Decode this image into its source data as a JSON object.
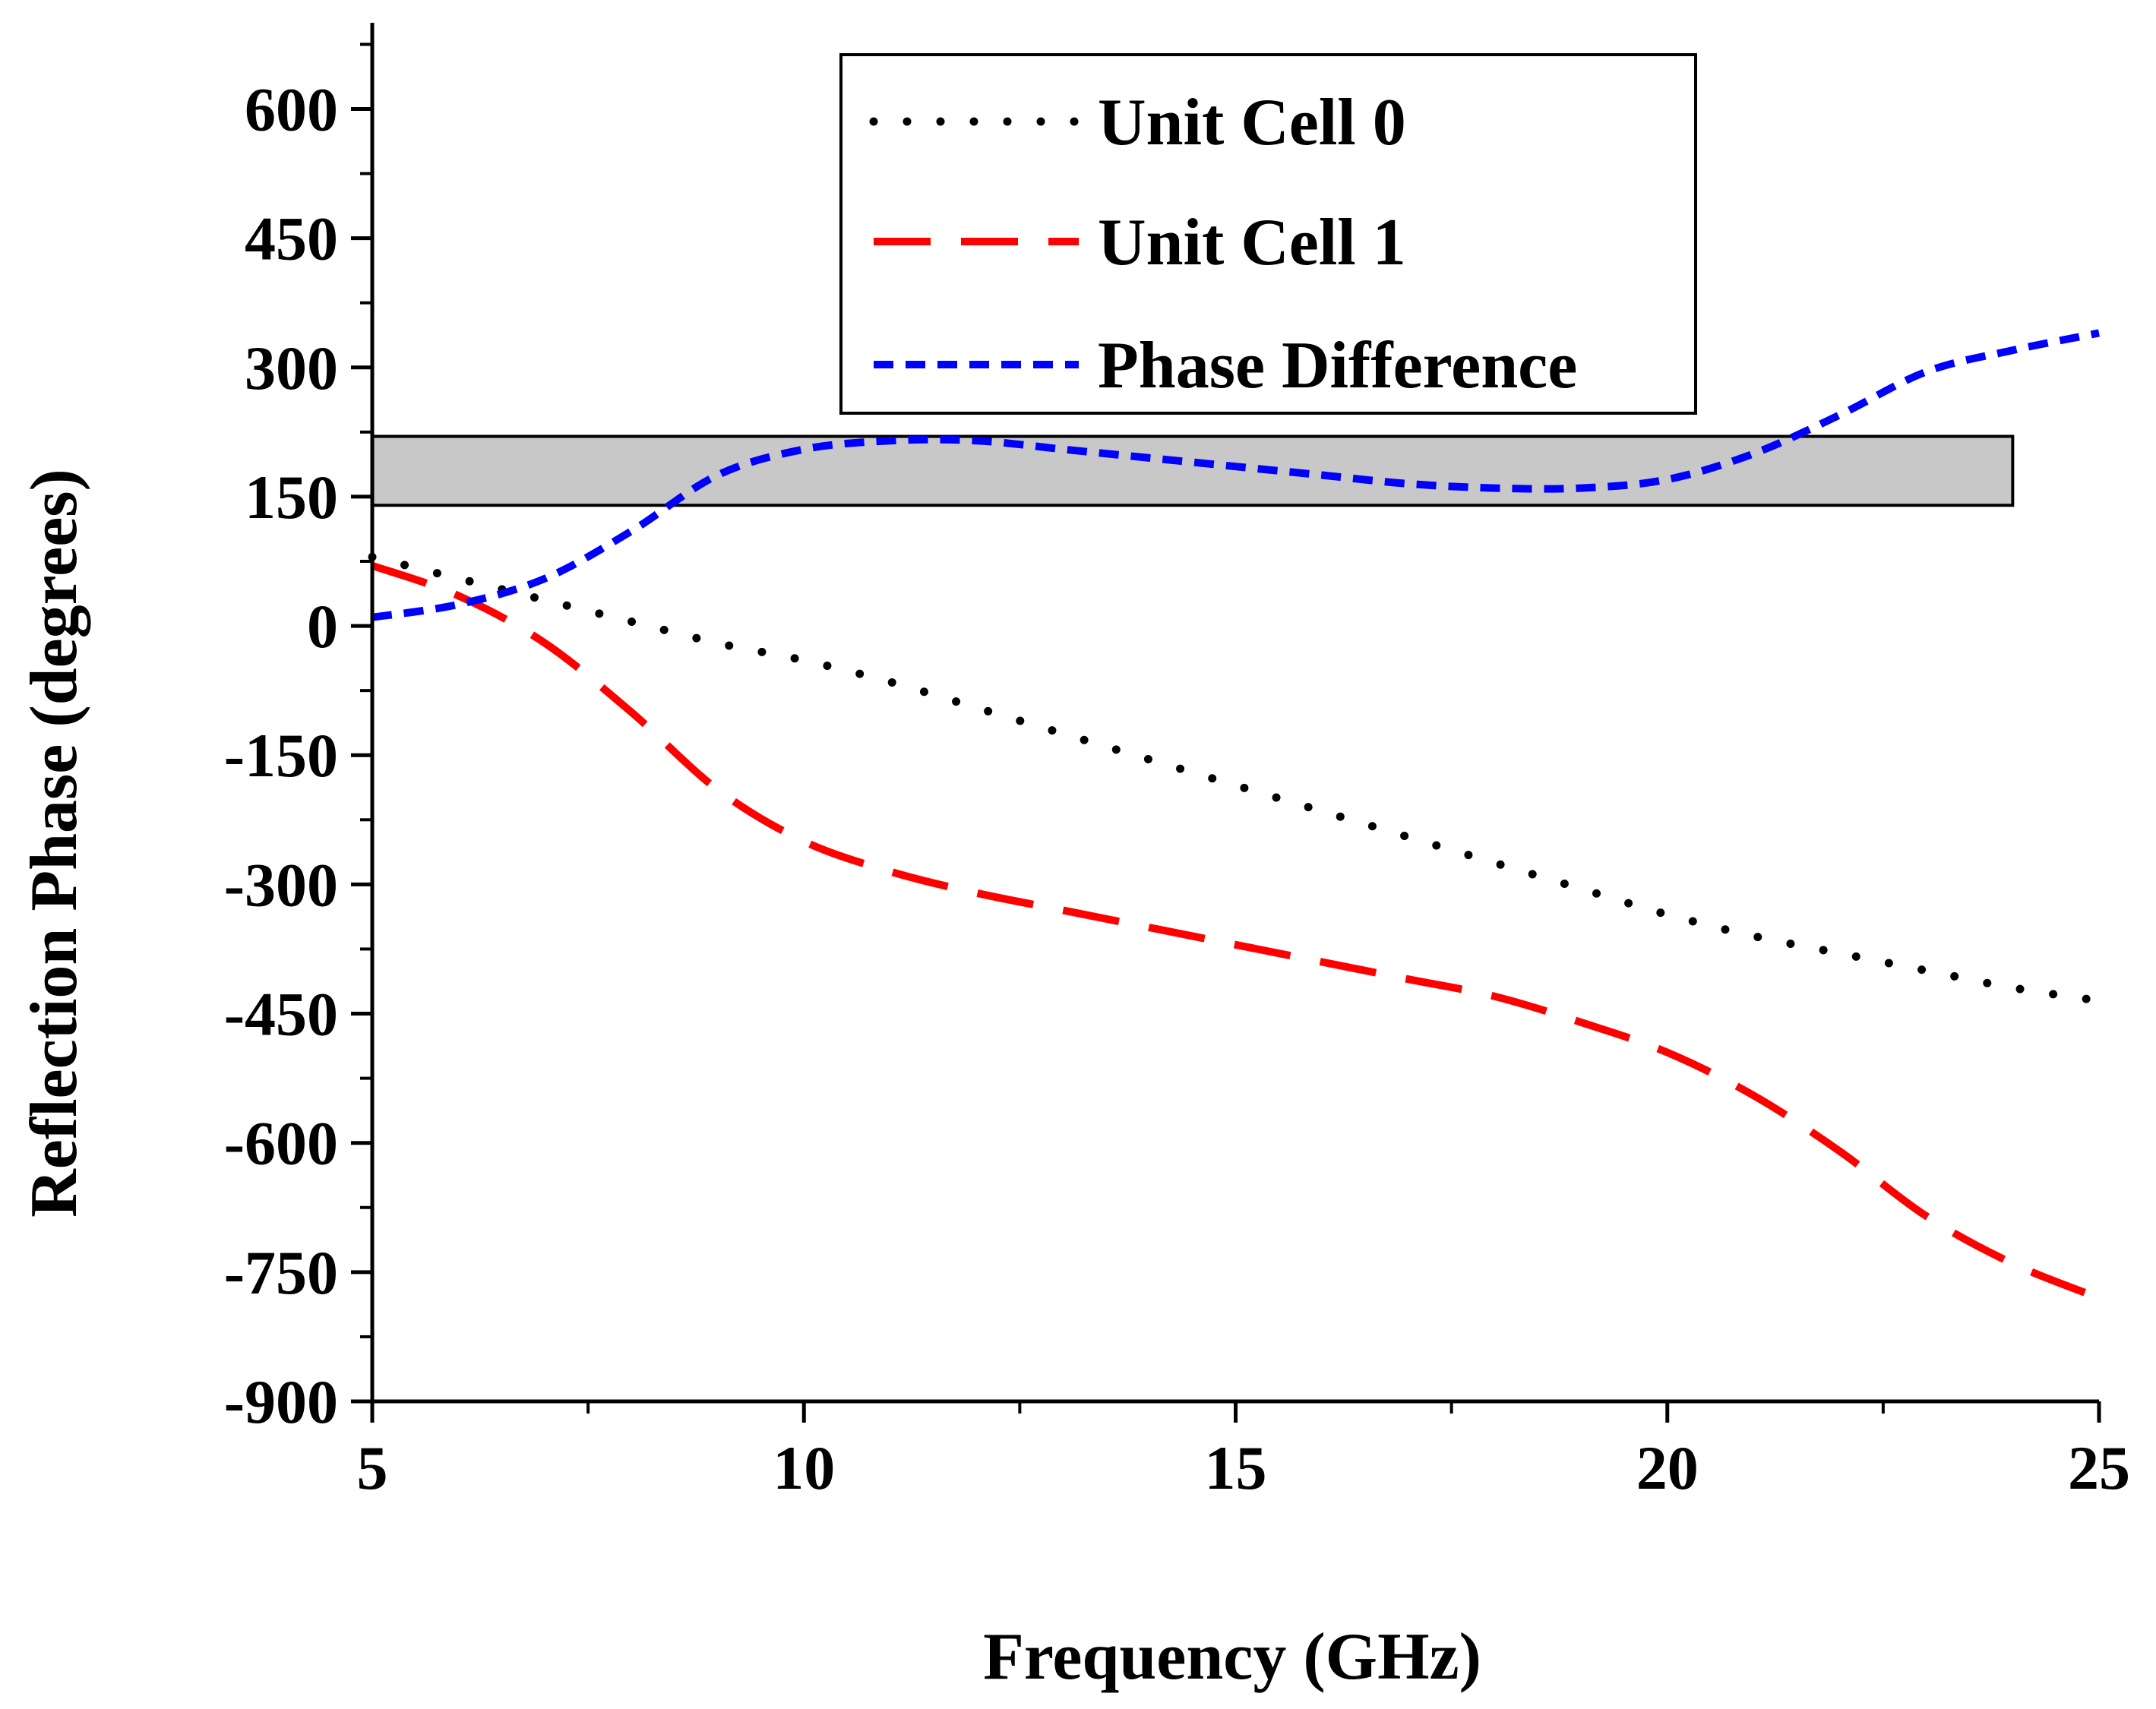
{
  "chart_data": {
    "type": "line",
    "title": "",
    "xlabel": "Frequency (GHz)",
    "ylabel": "Reflection Phase (degrees)",
    "xlim": [
      5,
      25
    ],
    "ylim": [
      -900,
      700
    ],
    "x_ticks": [
      5,
      10,
      15,
      20,
      25
    ],
    "y_ticks": [
      600,
      450,
      300,
      150,
      0,
      -150,
      -300,
      -450,
      -600,
      -750,
      -900
    ],
    "x_tick_labels": [
      "5",
      "10",
      "15",
      "20",
      "25"
    ],
    "y_tick_labels": [
      "600",
      "450",
      "300",
      "150",
      "0",
      "-150",
      "-300",
      "-450",
      "-600",
      "-750",
      "-900"
    ],
    "grid": false,
    "legend_position": "top-right",
    "shaded_band": {
      "x_range": [
        5,
        24
      ],
      "y_range": [
        140,
        220
      ],
      "color": "#c8c8c8"
    },
    "series": [
      {
        "name": "Unit Cell 0",
        "style": "dotted",
        "color": "#000000",
        "x": [
          5,
          6,
          7,
          8,
          9,
          10,
          11,
          12,
          13,
          14,
          15,
          16,
          17,
          18,
          19,
          20,
          21,
          22,
          23,
          24,
          25
        ],
        "y": [
          80,
          55,
          30,
          5,
          -20,
          -40,
          -65,
          -95,
          -125,
          -155,
          -185,
          -215,
          -245,
          -275,
          -305,
          -335,
          -360,
          -380,
          -400,
          -420,
          -435
        ]
      },
      {
        "name": "Unit Cell 1",
        "style": "dashed",
        "color": "#ff0000",
        "x": [
          5,
          6,
          7,
          8,
          9,
          10,
          11,
          12,
          13,
          14,
          15,
          16,
          17,
          18,
          19,
          20,
          21,
          22,
          23,
          24,
          25
        ],
        "y": [
          70,
          35,
          -20,
          -100,
          -190,
          -250,
          -285,
          -310,
          -330,
          -350,
          -370,
          -390,
          -410,
          -430,
          -460,
          -495,
          -545,
          -610,
          -685,
          -740,
          -780
        ]
      },
      {
        "name": "Phase Difference",
        "style": "short-dashed",
        "color": "#0000ff",
        "x": [
          5,
          6,
          7,
          8,
          9,
          10,
          11,
          12,
          13,
          14,
          15,
          16,
          17,
          18,
          19,
          20,
          21,
          22,
          23,
          24,
          25
        ],
        "y": [
          10,
          25,
          55,
          110,
          175,
          205,
          215,
          215,
          205,
          195,
          185,
          175,
          165,
          160,
          160,
          170,
          200,
          245,
          295,
          320,
          340
        ]
      }
    ]
  }
}
